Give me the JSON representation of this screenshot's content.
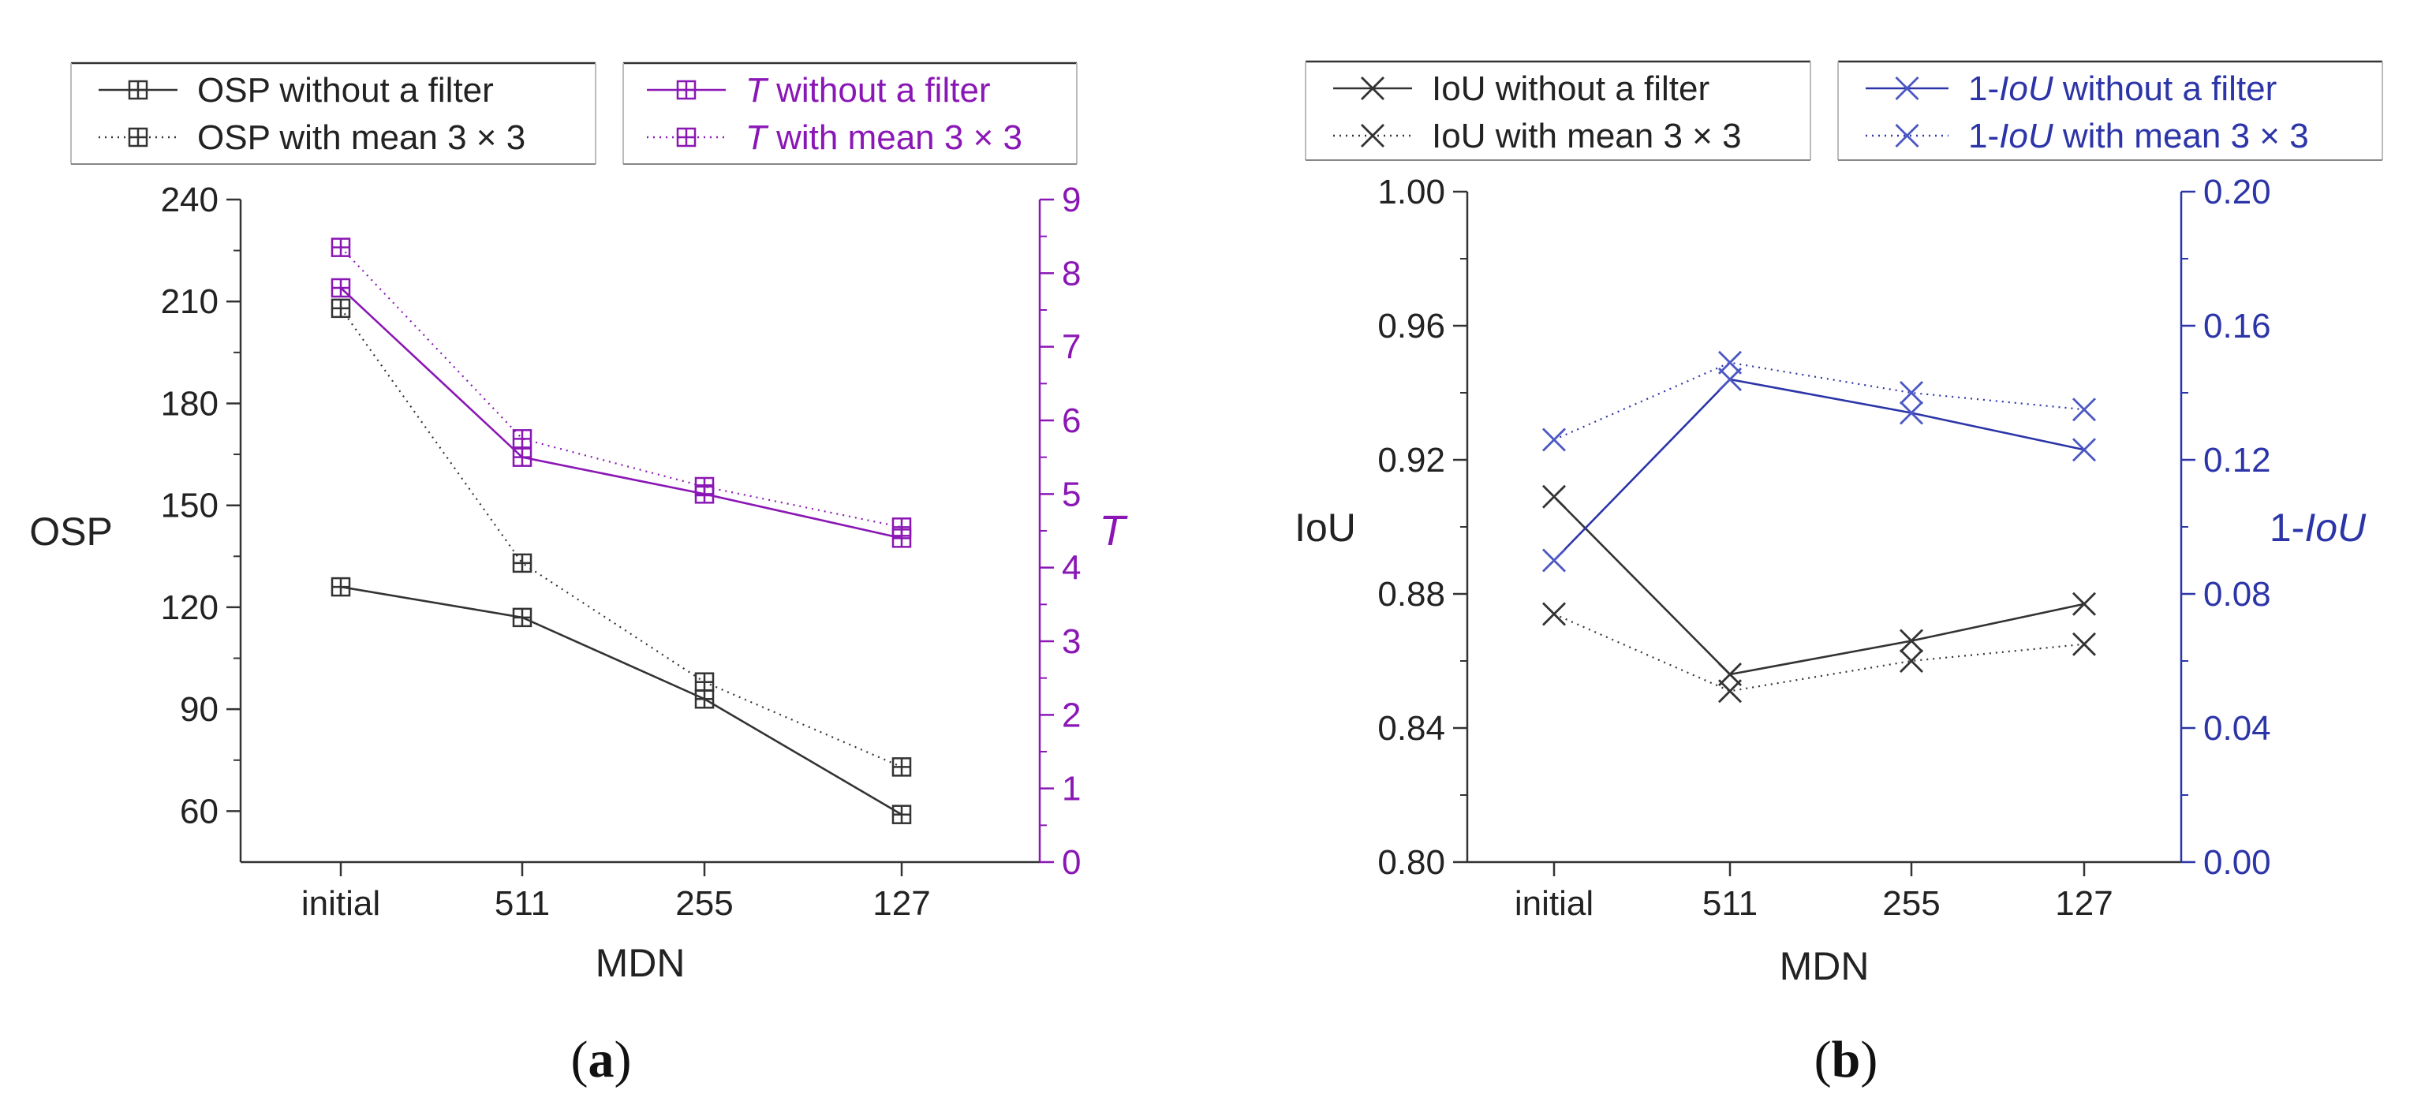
{
  "colors": {
    "black": "#333333",
    "purple": "#8a17b5",
    "blue": "#2c35a8",
    "blue_marker": "#4b58c4",
    "axis": "#333333"
  },
  "chart_data": [
    {
      "panel": "a",
      "type": "line",
      "caption_open": "(",
      "caption_letter": "a",
      "caption_close": ")",
      "xlabel": "MDN",
      "categories": [
        "initial",
        "511",
        "255",
        "127"
      ],
      "y_left": {
        "label": "OSP",
        "lim": [
          45,
          240
        ],
        "ticks": [
          60,
          90,
          120,
          150,
          180,
          210,
          240
        ],
        "tick_labels": [
          "60",
          "90",
          "120",
          "150",
          "180",
          "210",
          "240"
        ]
      },
      "y_right": {
        "label": "T",
        "lim": [
          0,
          9
        ],
        "ticks": [
          0,
          1,
          2,
          3,
          4,
          5,
          6,
          7,
          8,
          9
        ],
        "tick_labels": [
          "0",
          "1",
          "2",
          "3",
          "4",
          "5",
          "6",
          "7",
          "8",
          "9"
        ]
      },
      "series": [
        {
          "name": "OSP without a filter",
          "axis": "left",
          "style": "solid",
          "color": "#333333",
          "marker": "boxplus",
          "values": [
            126,
            117,
            93,
            59
          ]
        },
        {
          "name": "OSP with mean 3 × 3",
          "axis": "left",
          "style": "dotted",
          "color": "#333333",
          "marker": "boxplus",
          "values": [
            208,
            133,
            98,
            73
          ]
        },
        {
          "name": "T without a filter",
          "axis": "right",
          "style": "solid",
          "color": "#8a17b5",
          "marker": "boxplus",
          "values": [
            7.8,
            5.5,
            5.0,
            4.4
          ]
        },
        {
          "name": "T with mean 3 × 3",
          "axis": "right",
          "style": "dotted",
          "color": "#8a17b5",
          "marker": "boxplus",
          "values": [
            8.35,
            5.75,
            5.1,
            4.55
          ]
        }
      ],
      "legend": {
        "left_box": {
          "item1_prefix": "",
          "item1_italic": "",
          "item1_suffix": "OSP without a filter",
          "item2_prefix": "",
          "item2_italic": "",
          "item2_suffix": "OSP with mean 3 × 3"
        },
        "right_box": {
          "item1_prefix": "",
          "item1_italic": "T",
          "item1_suffix": " without a filter",
          "item2_prefix": "",
          "item2_italic": "T",
          "item2_suffix": " with mean 3 × 3"
        }
      }
    },
    {
      "panel": "b",
      "type": "line",
      "caption_open": "(",
      "caption_letter": "b",
      "caption_close": ")",
      "xlabel": "MDN",
      "categories": [
        "initial",
        "511",
        "255",
        "127"
      ],
      "y_left": {
        "label": "IoU",
        "lim": [
          0.8,
          1.0
        ],
        "ticks": [
          0.8,
          0.84,
          0.88,
          0.92,
          0.96,
          1.0
        ],
        "tick_labels": [
          "0.80",
          "0.84",
          "0.88",
          "0.92",
          "0.96",
          "1.00"
        ]
      },
      "y_right": {
        "label_prefix": "1-",
        "label_italic": "IoU",
        "lim": [
          0.0,
          0.2
        ],
        "ticks": [
          0.0,
          0.04,
          0.08,
          0.12,
          0.16,
          0.2
        ],
        "tick_labels": [
          "0.00",
          "0.04",
          "0.08",
          "0.12",
          "0.16",
          "0.20"
        ]
      },
      "series": [
        {
          "name": "IoU without a filter",
          "axis": "left",
          "style": "solid",
          "color": "#333333",
          "marker": "x",
          "values": [
            0.909,
            0.856,
            0.866,
            0.877
          ]
        },
        {
          "name": "IoU with mean 3 × 3",
          "axis": "left",
          "style": "dotted",
          "color": "#333333",
          "marker": "x",
          "values": [
            0.874,
            0.851,
            0.86,
            0.865
          ]
        },
        {
          "name": "1-IoU without a filter",
          "axis": "right",
          "style": "solid",
          "color": "#2c35a8",
          "marker": "x",
          "values": [
            0.09,
            0.144,
            0.134,
            0.123
          ]
        },
        {
          "name": "1-IoU with mean 3 × 3",
          "axis": "right",
          "style": "dotted",
          "color": "#2c35a8",
          "marker": "x",
          "values": [
            0.126,
            0.149,
            0.14,
            0.135
          ]
        }
      ],
      "legend": {
        "left_box": {
          "item1_prefix": "",
          "item1_italic": "",
          "item1_suffix": "IoU without a filter",
          "item2_prefix": "",
          "item2_italic": "",
          "item2_suffix": "IoU with mean 3 × 3"
        },
        "right_box": {
          "item1_prefix": "1-",
          "item1_italic": "IoU",
          "item1_suffix": " without a filter",
          "item2_prefix": "1-",
          "item2_italic": "IoU",
          "item2_suffix": " with mean 3 × 3"
        }
      }
    }
  ]
}
